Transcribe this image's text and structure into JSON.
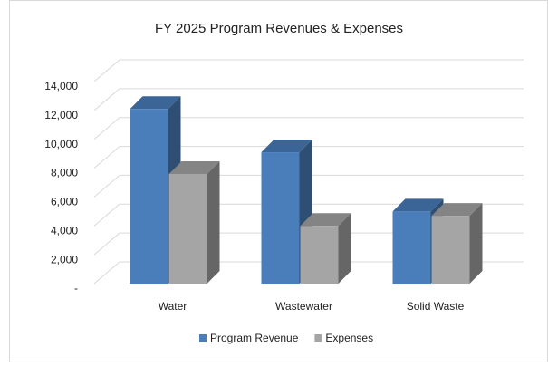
{
  "chart_data": {
    "type": "bar3d",
    "title": "FY 2025  Program Revenues & Expenses",
    "categories": [
      "Water",
      "Wastewater",
      "Solid Waste"
    ],
    "series": [
      {
        "name": "Program Revenue",
        "color": "#4a7ebb",
        "values": [
          12100,
          9100,
          5000
        ]
      },
      {
        "name": "Expenses",
        "color": "#a5a5a5",
        "values": [
          7600,
          4000,
          4700
        ]
      }
    ],
    "ylim": [
      0,
      14000
    ],
    "yticks": [
      {
        "value": 0,
        "label": "-"
      },
      {
        "value": 2000,
        "label": "2,000"
      },
      {
        "value": 4000,
        "label": "4,000"
      },
      {
        "value": 6000,
        "label": "6,000"
      },
      {
        "value": 8000,
        "label": "8,000"
      },
      {
        "value": 10000,
        "label": "10,000"
      },
      {
        "value": 12000,
        "label": "12,000"
      },
      {
        "value": 14000,
        "label": "14,000"
      }
    ],
    "grid": true,
    "legend": "bottom"
  }
}
